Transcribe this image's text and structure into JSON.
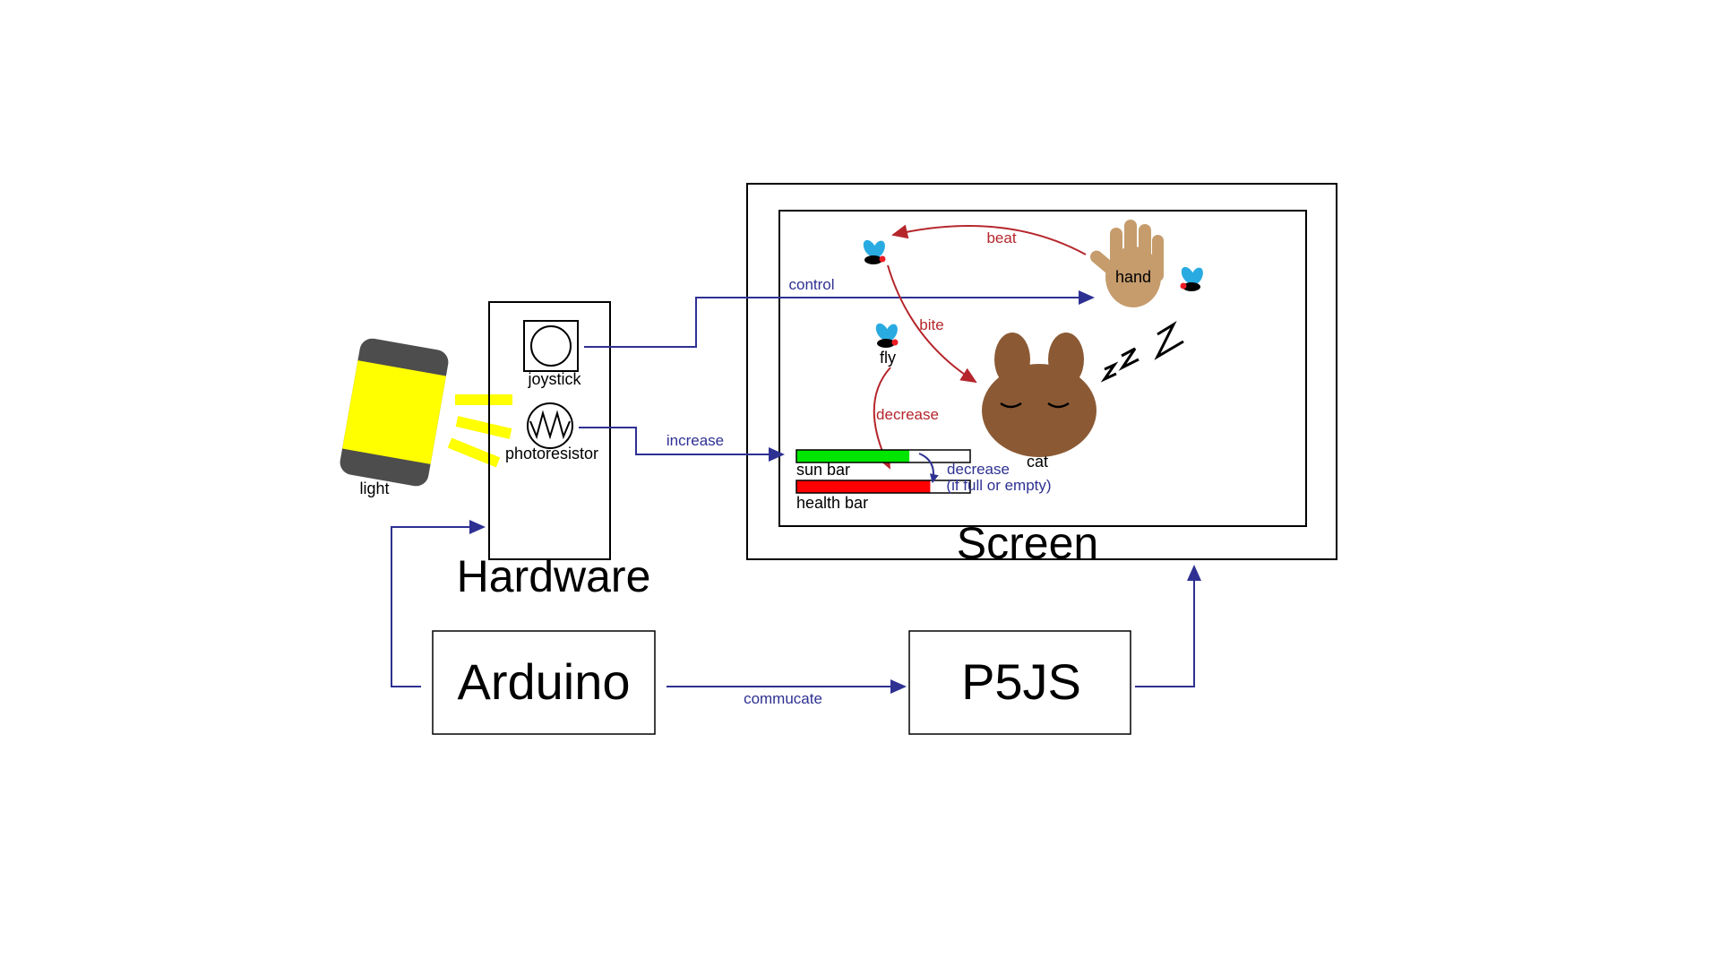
{
  "labels": {
    "light": "light",
    "joystick": "joystick",
    "photoresistor": "photoresistor",
    "hardware": "Hardware",
    "screen": "Screen",
    "arduino": "Arduino",
    "p5js": "P5JS",
    "hand": "hand",
    "fly": "fly",
    "cat": "cat",
    "sun_bar": "sun bar",
    "health_bar": "health bar"
  },
  "arrows": {
    "control": "control",
    "increase": "increase",
    "commucate": "commucate",
    "beat": "beat",
    "bite": "bite",
    "decrease": "decrease",
    "decrease_bars": "decrease",
    "decrease_note": "(if full or empty)"
  },
  "bars": {
    "sun_fill_fraction": 0.65,
    "health_fill_fraction": 0.77
  },
  "colors": {
    "flow_arrow": "#2e3192",
    "game_arrow": "#b5262c",
    "light_yellow": "#ffff00",
    "light_case": "#4d4d4d",
    "sun_bar": "#00e600",
    "health_bar": "#ff0000",
    "cat": "#8b5a35",
    "hand": "#c69c6d",
    "fly_wing": "#29abe2"
  }
}
